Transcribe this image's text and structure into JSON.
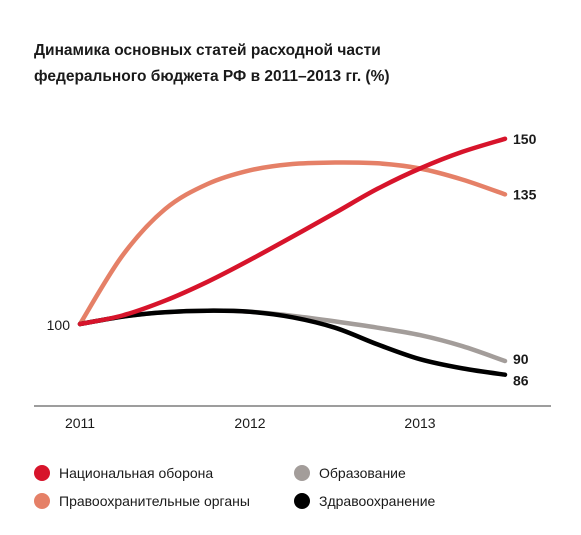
{
  "chart_data": {
    "type": "line",
    "title": "Динамика основных статей расходной части",
    "subtitle": "федерального бюджета РФ в 2011–2013 гг. (%)",
    "x_ticks": [
      "2011",
      "2012",
      "2013"
    ],
    "y_start_label": "100",
    "grid": false,
    "legend_position": "bottom",
    "series": [
      {
        "name": "Национальная оборона",
        "color": "#d7142b",
        "end_label": "150",
        "x": [
          2011,
          2011.25,
          2011.5,
          2011.75,
          2012,
          2012.25,
          2012.5,
          2012.75,
          2013,
          2013.25,
          2013.5
        ],
        "values": [
          100,
          102.3,
          106.3,
          111.4,
          117.3,
          123.6,
          130,
          136.5,
          142,
          146.5,
          150
        ]
      },
      {
        "name": "Правоохранительные органы",
        "color": "#e58067",
        "end_label": "135",
        "x": [
          2011,
          2011.25,
          2011.5,
          2011.75,
          2012,
          2012.25,
          2012.5,
          2012.75,
          2013,
          2013.25,
          2013.5
        ],
        "values": [
          100,
          118.5,
          131,
          137.8,
          141.5,
          143.2,
          143.6,
          143.4,
          142,
          139,
          135
        ]
      },
      {
        "name": "Образование",
        "color": "#a39d9a",
        "end_label": "90",
        "x": [
          2011,
          2011.25,
          2011.5,
          2011.75,
          2012,
          2012.25,
          2012.5,
          2012.75,
          2013,
          2013.25,
          2013.5
        ],
        "values": [
          100,
          102,
          103.2,
          103.6,
          103.3,
          102.2,
          100.7,
          99,
          97,
          94,
          90
        ]
      },
      {
        "name": "Здравоохранение",
        "color": "#000000",
        "end_label": "86",
        "x": [
          2011,
          2011.25,
          2011.5,
          2011.75,
          2012,
          2012.25,
          2012.5,
          2012.75,
          2013,
          2013.25,
          2013.5
        ],
        "values": [
          100,
          102,
          103.2,
          103.6,
          103.3,
          101.8,
          99,
          94.5,
          90.5,
          88,
          86.3
        ]
      }
    ],
    "xlim": [
      2011,
      2013.5
    ],
    "ylim": [
      70,
      160
    ]
  }
}
